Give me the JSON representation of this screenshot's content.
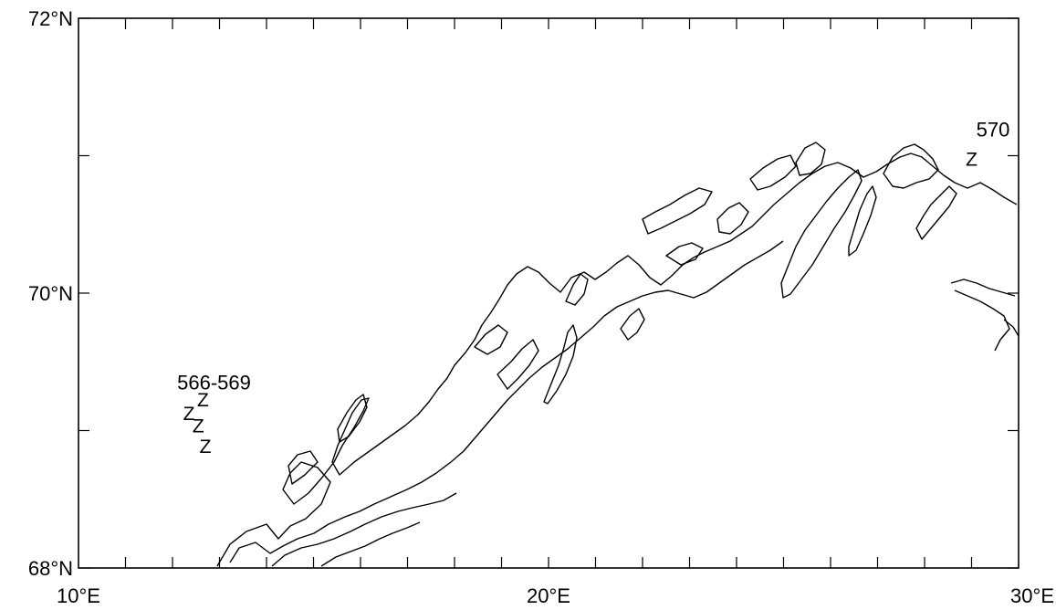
{
  "map": {
    "lon_range": [
      10,
      30
    ],
    "lat_range": [
      68,
      72
    ],
    "lon_labels": [
      {
        "lon": 10,
        "text": "10°E"
      },
      {
        "lon": 20,
        "text": "20°E"
      },
      {
        "lon": 30,
        "text": "30°E"
      }
    ],
    "lat_labels": [
      {
        "lat": 72,
        "text": "72°N"
      },
      {
        "lat": 70,
        "text": "70°N"
      },
      {
        "lat": 68,
        "text": "68°N"
      }
    ],
    "lon_ticks": [
      11,
      12,
      13,
      14,
      15,
      16,
      17,
      18,
      19,
      20,
      21,
      22,
      23,
      24,
      25,
      26,
      27,
      28,
      29
    ],
    "lat_ticks": [
      68,
      69,
      70,
      71,
      72
    ],
    "station_groups": [
      {
        "label": "566-569",
        "label_lon": 12.1,
        "label_lat": 69.3,
        "markers": [
          {
            "lon": 12.65,
            "lat": 69.23
          },
          {
            "lon": 12.35,
            "lat": 69.13
          },
          {
            "lon": 12.55,
            "lat": 69.04
          },
          {
            "lon": 12.7,
            "lat": 68.89
          }
        ]
      },
      {
        "label": "570",
        "label_lon": 29.1,
        "label_lat": 71.14,
        "markers": [
          {
            "lon": 29.0,
            "lat": 70.98
          }
        ]
      }
    ],
    "marker_glyph": "Z",
    "line_color": "#000000"
  }
}
